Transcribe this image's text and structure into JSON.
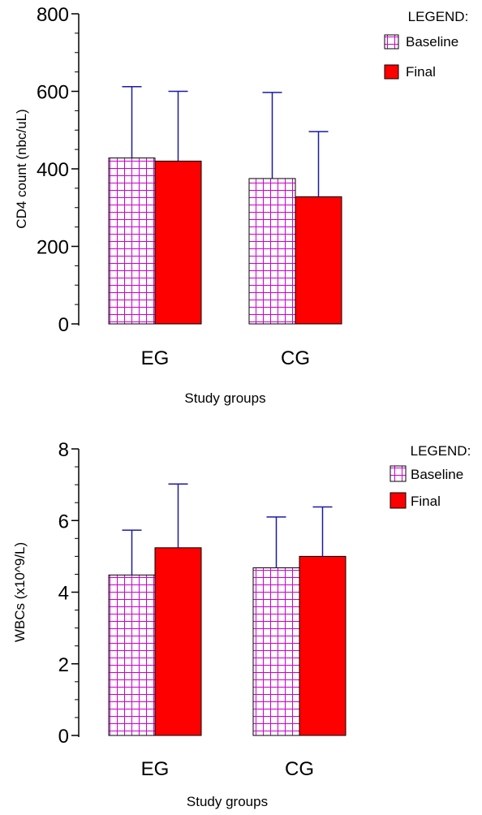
{
  "colors": {
    "baseline_grid": "#cc00cc",
    "final_fill": "#ff0000",
    "error_bar": "#1a1aa6",
    "axis": "#000000"
  },
  "chart_data": [
    {
      "type": "bar",
      "ylabel": "CD4 count (nbc/uL)",
      "xlabel": "Study groups",
      "categories": [
        "EG",
        "CG"
      ],
      "ylim": [
        0,
        800
      ],
      "yticks": [
        0,
        200,
        400,
        600,
        800
      ],
      "legend": {
        "title": "LEGEND:",
        "placement": "top-right"
      },
      "series": [
        {
          "name": "Baseline",
          "pattern": "grid",
          "values": [
            428,
            375
          ],
          "error_upper": [
            612,
            597
          ]
        },
        {
          "name": "Final",
          "pattern": "solid",
          "values": [
            420,
            328
          ],
          "error_upper": [
            600,
            496
          ]
        }
      ]
    },
    {
      "type": "bar",
      "ylabel": "WBCs (x10^9/L)",
      "xlabel": "Study groups",
      "categories": [
        "EG",
        "CG"
      ],
      "ylim": [
        0,
        8
      ],
      "yticks": [
        0,
        2,
        4,
        6,
        8
      ],
      "legend": {
        "title": "LEGEND:",
        "placement": "top-right"
      },
      "series": [
        {
          "name": "Baseline",
          "pattern": "grid",
          "values": [
            4.48,
            4.68
          ],
          "error_upper": [
            5.73,
            6.1
          ]
        },
        {
          "name": "Final",
          "pattern": "solid",
          "values": [
            5.24,
            5.0
          ],
          "error_upper": [
            7.02,
            6.38
          ]
        }
      ]
    }
  ]
}
